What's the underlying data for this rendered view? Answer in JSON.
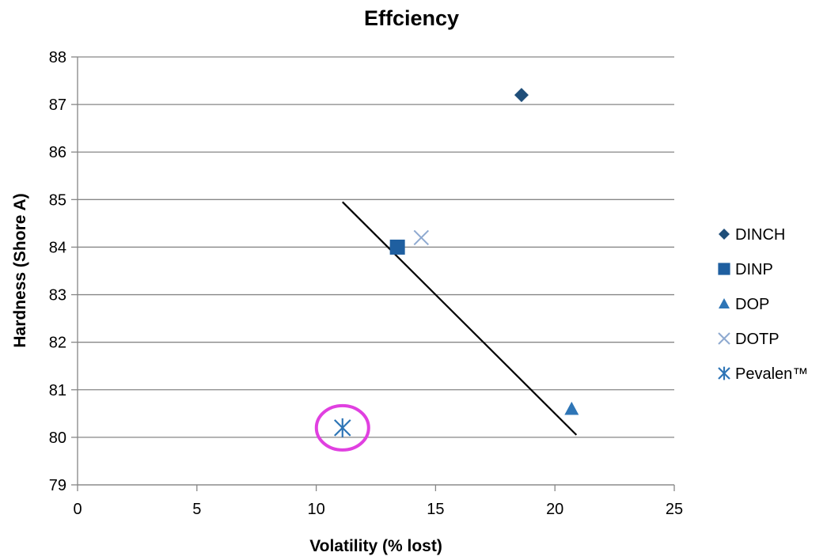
{
  "chart_data": {
    "type": "scatter",
    "title": "Effciency",
    "xlabel": "Volatility (% lost)",
    "ylabel": "Hardness (Shore A)",
    "xlim": [
      0,
      25
    ],
    "ylim": [
      79,
      88
    ],
    "x_ticks": [
      0,
      5,
      10,
      15,
      20,
      25
    ],
    "y_ticks": [
      79,
      80,
      81,
      82,
      83,
      84,
      85,
      86,
      87,
      88
    ],
    "grid": "horizontal",
    "legend_position": "right",
    "series": [
      {
        "name": "DINCH",
        "marker": "diamond",
        "color": "#1F4E79",
        "x": [
          18.6
        ],
        "y": [
          87.2
        ]
      },
      {
        "name": "DINP",
        "marker": "square",
        "color": "#1F5FA0",
        "x": [
          13.4
        ],
        "y": [
          84.0
        ]
      },
      {
        "name": "DOP",
        "marker": "triangle",
        "color": "#2E75B6",
        "x": [
          20.7
        ],
        "y": [
          80.6
        ]
      },
      {
        "name": "DOTP",
        "marker": "x",
        "color": "#8EA9D0",
        "x": [
          14.4
        ],
        "y": [
          84.2
        ]
      },
      {
        "name": "Pevalen™",
        "marker": "asterisk",
        "color": "#2E75B6",
        "x": [
          11.1
        ],
        "y": [
          80.2
        ]
      }
    ],
    "trendline": {
      "color": "#000000",
      "x": [
        11.1,
        20.9
      ],
      "y": [
        84.95,
        80.05
      ]
    },
    "highlight": {
      "color": "#E040E0",
      "x": 11.1,
      "y": 80.2
    }
  }
}
